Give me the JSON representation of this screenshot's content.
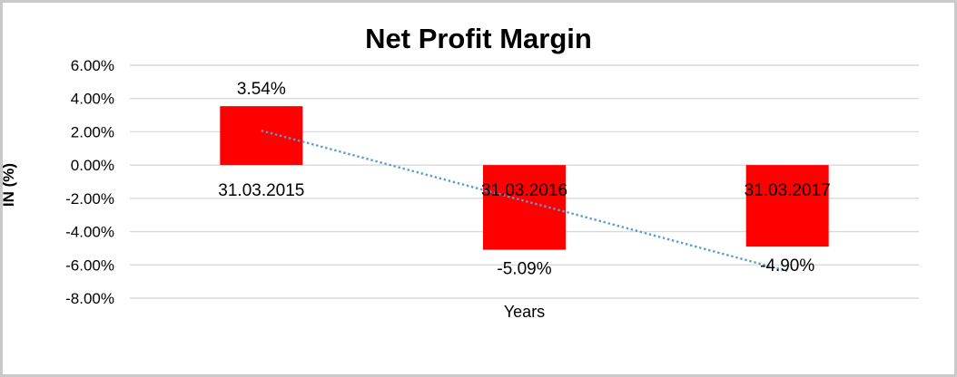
{
  "frame": {
    "background": "#ffffff",
    "border_color": "#c9c9c9"
  },
  "chart_data": {
    "type": "bar",
    "title": "Net Profit Margin",
    "xlabel": "Years",
    "ylabel": "IN (%)",
    "categories": [
      "31.03.2015",
      "31.03.2016",
      "31.03.2017"
    ],
    "values": [
      3.54,
      -5.09,
      -4.9
    ],
    "data_labels": [
      "3.54%",
      "-5.09%",
      "-4.90%"
    ],
    "bar_color": "#ff0000",
    "text_color": "#000000",
    "ylim": [
      -8,
      6
    ],
    "ytick_values": [
      6,
      4,
      2,
      0,
      -2,
      -4,
      -6,
      -8
    ],
    "ytick_labels": [
      "6.00%",
      "4.00%",
      "2.00%",
      "0.00%",
      "-2.00%",
      "-4.00%",
      "-6.00%",
      "-8.00%"
    ],
    "grid": true,
    "gridline_color": "#d9d9d9",
    "legend": "none",
    "category_labels_position": "below zero line",
    "trendline": {
      "type": "linear",
      "style": "dotted",
      "color": "#5b9bd5",
      "start": {
        "category_index": 0,
        "value": 2.07
      },
      "end": {
        "category_index": 2,
        "value": -6.37
      }
    }
  }
}
